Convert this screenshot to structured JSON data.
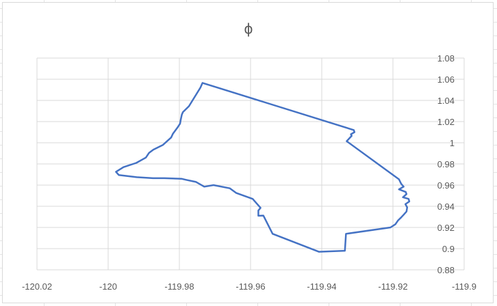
{
  "chart_data": {
    "type": "scatter",
    "title": "ϕ",
    "xlabel": "",
    "ylabel": "",
    "xlim": [
      -120.02,
      -119.9
    ],
    "ylim": [
      0.88,
      1.08
    ],
    "x_ticks": [
      "-120.02",
      "-120",
      "-119.98",
      "-119.96",
      "-119.94",
      "-119.92",
      "-119.9"
    ],
    "y_ticks": [
      "0.88",
      "0.9",
      "0.92",
      "0.94",
      "0.96",
      "0.98",
      "1",
      "1.02",
      "1.04",
      "1.06",
      "1.08"
    ],
    "grid": true,
    "legend": "none",
    "series_color": "#4472c4",
    "series": [
      {
        "x": [
          -119.9735,
          -119.931,
          -119.9308,
          -119.9318,
          -119.9316,
          -119.933,
          -119.9183,
          -119.9177,
          -119.917,
          -119.9183,
          -119.9164,
          -119.9162,
          -119.9172,
          -119.9156,
          -119.9154,
          -119.9165,
          -119.916,
          -119.9162,
          -119.917,
          -119.9177,
          -119.9186,
          -119.9193,
          -119.9207,
          -119.9332,
          -119.9335,
          -119.9408,
          -119.9538,
          -119.9564,
          -119.9578,
          -119.9578,
          -119.9572,
          -119.9594,
          -119.964,
          -119.9658,
          -119.9704,
          -119.973,
          -119.9753,
          -119.9781,
          -119.9794,
          -119.9842,
          -119.9874,
          -119.992,
          -119.997,
          -119.9978,
          -119.9957,
          -119.9921,
          -119.9894,
          -119.9885,
          -119.9873,
          -119.9846,
          -119.9823,
          -119.9818,
          -119.9806,
          -119.9798,
          -119.9796,
          -119.9793,
          -119.979,
          -119.9773,
          -119.9741,
          -119.9735
        ],
        "y": [
          1.0565,
          1.012,
          1.01,
          1.008,
          1.0065,
          1.0015,
          0.9655,
          0.9612,
          0.9585,
          0.956,
          0.9535,
          0.9515,
          0.9485,
          0.947,
          0.9445,
          0.942,
          0.939,
          0.935,
          0.932,
          0.9295,
          0.9265,
          0.923,
          0.92,
          0.914,
          0.898,
          0.897,
          0.914,
          0.9312,
          0.931,
          0.936,
          0.9385,
          0.947,
          0.9525,
          0.957,
          0.96,
          0.9585,
          0.963,
          0.965,
          0.966,
          0.9665,
          0.9665,
          0.9675,
          0.9695,
          0.9725,
          0.977,
          0.981,
          0.986,
          0.9905,
          0.9935,
          0.998,
          1.005,
          1.0085,
          1.014,
          1.018,
          1.022,
          1.0265,
          1.029,
          1.0345,
          1.052,
          1.0565
        ]
      }
    ]
  }
}
